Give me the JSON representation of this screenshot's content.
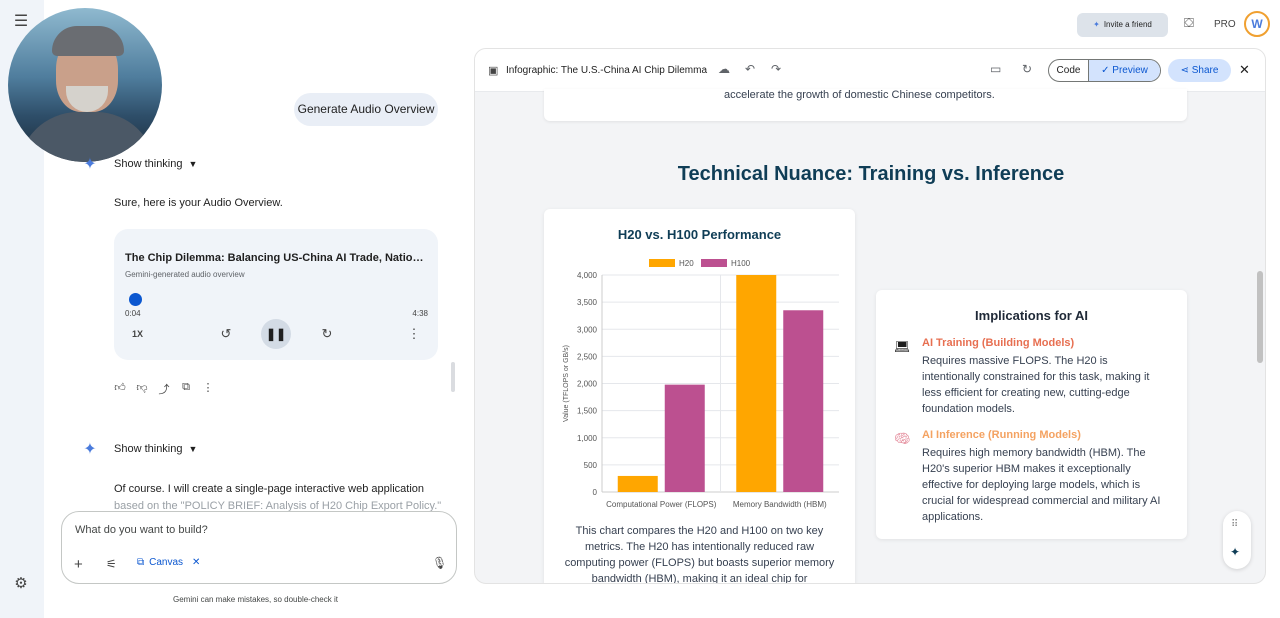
{
  "chat": {
    "user_message": "Generate Audio Overview",
    "show_thinking_1": "Show thinking",
    "reply_1": "Sure, here is your Audio Overview.",
    "audio": {
      "title": "The Chip Dilemma: Balancing US-China AI Trade, National ...",
      "subtitle": "Gemini-generated audio overview",
      "current_time": "0:04",
      "duration": "4:38",
      "speed": "1X",
      "progress": 0.014
    },
    "show_thinking_2": "Show thinking",
    "reply_2_line1": "Of course. I will create a single-page interactive web application",
    "reply_2_line2": "based on the \"POLICY BRIEF: Analysis of H20 Chip Export Policy.\"",
    "input_placeholder": "What do you want to build?",
    "canvas_chip": "Canvas",
    "disclaimer": "Gemini can make mistakes, so double-check it"
  },
  "header": {
    "invite_label": "Invite a friend",
    "pro_label": "PRO",
    "avatar_letter": "W"
  },
  "panel": {
    "title": "Infographic: The U.S.-China AI Chip Dilemma",
    "code_label": "Code",
    "preview_label": "Preview",
    "share_label": "Share",
    "top_text": "accelerate the growth of domestic Chinese competitors.",
    "section_title": "Technical Nuance: Training vs. Inference",
    "chart_caption": "This chart compares the H20 and H100 on two key metrics. The H20 has intentionally reduced raw computing power (FLOPS) but boasts superior memory bandwidth (HBM), making it an ideal chip for",
    "implications": {
      "title": "Implications for AI",
      "items": [
        {
          "icon": "laptop-icon",
          "title": "AI Training (Building Models)",
          "text": "Requires massive FLOPS. The H20 is intentionally constrained for this task, making it less efficient for creating new, cutting-edge foundation models.",
          "color": "#e76f51"
        },
        {
          "icon": "brain-icon",
          "title": "AI Inference (Running Models)",
          "text": "Requires high memory bandwidth (HBM). The H20's superior HBM makes it exceptionally effective for deploying large models, which is crucial for widespread commercial and military AI applications.",
          "color": "#f4a261"
        }
      ]
    }
  },
  "chart_data": {
    "type": "bar",
    "title": "H20 vs. H100 Performance",
    "categories": [
      "Computational Power (FLOPS)",
      "Memory Bandwidth (HBM)"
    ],
    "series": [
      {
        "name": "H20",
        "values": [
          296,
          4000
        ],
        "color": "#ffa600"
      },
      {
        "name": "H100",
        "values": [
          1979,
          3350
        ],
        "color": "#bc5090"
      }
    ],
    "ylabel": "Value (TFLOPS or GB/s)",
    "ylim": [
      0,
      4000
    ],
    "yticks": [
      "0",
      "500",
      "1,000",
      "1,500",
      "2,000",
      "2,500",
      "3,000",
      "3,500",
      "4,000"
    ],
    "legend": "top",
    "grid": true
  }
}
